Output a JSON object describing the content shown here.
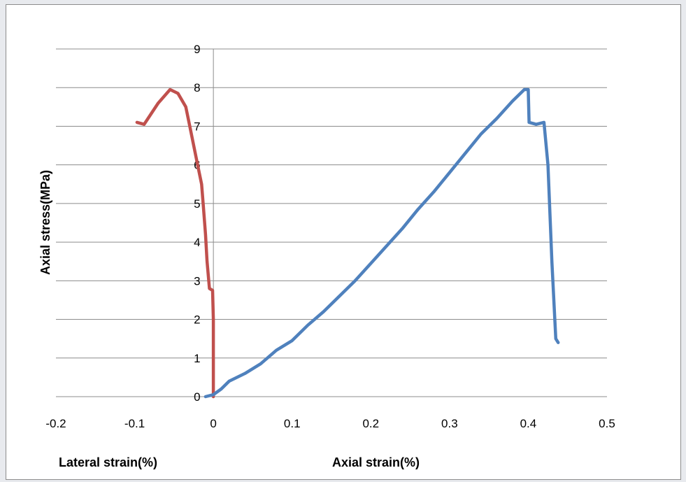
{
  "chart_data": {
    "type": "line",
    "title": "",
    "ylabel": "Axial stress(MPa)",
    "xlabel_left": "Lateral strain(%)",
    "xlabel_right": "Axial strain(%)",
    "xlim": [
      -0.2,
      0.5
    ],
    "ylim": [
      0,
      9
    ],
    "x_ticks": [
      "-0.2",
      "-0.1",
      "0",
      "0.1",
      "0.2",
      "0.3",
      "0.4",
      "0.5"
    ],
    "y_ticks": [
      "0",
      "1",
      "2",
      "3",
      "4",
      "5",
      "6",
      "7",
      "8",
      "9"
    ],
    "grid": "horizontal",
    "legend": "none",
    "series": [
      {
        "color": "#c0504d",
        "points": [
          [
            0,
            0
          ],
          [
            0,
            1.0
          ],
          [
            0,
            2.0
          ],
          [
            -0.001,
            2.75
          ],
          [
            -0.005,
            2.8
          ],
          [
            -0.008,
            3.5
          ],
          [
            -0.01,
            4.2
          ],
          [
            -0.013,
            5.0
          ],
          [
            -0.015,
            5.5
          ],
          [
            -0.02,
            6.0
          ],
          [
            -0.025,
            6.5
          ],
          [
            -0.03,
            7.0
          ],
          [
            -0.035,
            7.5
          ],
          [
            -0.045,
            7.85
          ],
          [
            -0.055,
            7.95
          ],
          [
            -0.07,
            7.6
          ],
          [
            -0.088,
            7.05
          ],
          [
            -0.097,
            7.1
          ]
        ]
      },
      {
        "color": "#4f81bd",
        "points": [
          [
            -0.01,
            0
          ],
          [
            0,
            0.05
          ],
          [
            0.01,
            0.2
          ],
          [
            0.02,
            0.4
          ],
          [
            0.04,
            0.6
          ],
          [
            0.06,
            0.85
          ],
          [
            0.08,
            1.2
          ],
          [
            0.1,
            1.45
          ],
          [
            0.12,
            1.85
          ],
          [
            0.14,
            2.2
          ],
          [
            0.16,
            2.6
          ],
          [
            0.18,
            3.0
          ],
          [
            0.2,
            3.45
          ],
          [
            0.22,
            3.9
          ],
          [
            0.24,
            4.35
          ],
          [
            0.26,
            4.85
          ],
          [
            0.28,
            5.3
          ],
          [
            0.3,
            5.8
          ],
          [
            0.32,
            6.3
          ],
          [
            0.34,
            6.8
          ],
          [
            0.36,
            7.2
          ],
          [
            0.38,
            7.65
          ],
          [
            0.395,
            7.95
          ],
          [
            0.4,
            7.95
          ],
          [
            0.401,
            7.1
          ],
          [
            0.41,
            7.05
          ],
          [
            0.42,
            7.1
          ],
          [
            0.425,
            6.0
          ],
          [
            0.43,
            3.5
          ],
          [
            0.435,
            1.5
          ],
          [
            0.438,
            1.4
          ]
        ]
      }
    ]
  }
}
